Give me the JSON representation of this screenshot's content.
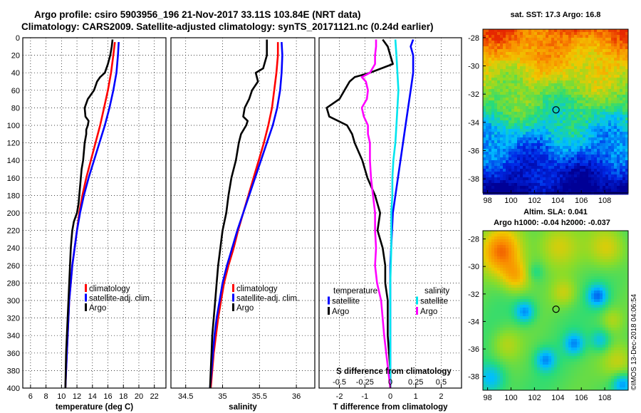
{
  "title": {
    "line1": "Argo profile: csiro 5903956_196 21-Nov-2017 33.11S 103.84E (NRT data)",
    "line2": "Climatology: CARS2009. Satellite-adjusted climatology: synTS_20171121.nc (0.24d earlier)"
  },
  "credit": "©IMOS 13-Dec-2018 04:06:54",
  "colors": {
    "climatology": "#ff0000",
    "satellite": "#0000ff",
    "argo": "#000000",
    "sat_salinity": "#00e5ee",
    "argo_salinity": "#ff00ff"
  },
  "chart_data": [
    {
      "type": "line",
      "panel": "temperature",
      "xlabel": "temperature (deg C)",
      "xlim": [
        5,
        23.5
      ],
      "xticks": [
        6,
        8,
        10,
        12,
        14,
        16,
        18,
        20,
        22
      ],
      "ylim": [
        0,
        400
      ],
      "yticks": [
        0,
        20,
        40,
        60,
        80,
        100,
        120,
        140,
        160,
        180,
        200,
        220,
        240,
        260,
        280,
        300,
        320,
        340,
        360,
        380,
        400
      ],
      "legend": [
        "climatology",
        "satellite-adj. clim.",
        "Argo"
      ],
      "series": [
        {
          "name": "climatology",
          "color": "#ff0000",
          "depth": [
            5,
            20,
            40,
            60,
            80,
            100,
            120,
            140,
            160,
            180,
            200,
            220,
            240,
            260,
            280,
            300,
            320,
            340,
            360,
            380,
            400
          ],
          "values": [
            16.9,
            16.7,
            16.4,
            16.0,
            15.5,
            15.0,
            14.4,
            13.8,
            13.2,
            12.7,
            12.3,
            12.0,
            11.7,
            11.4,
            11.2,
            11.0,
            10.9,
            10.8,
            10.7,
            10.6,
            10.5
          ]
        },
        {
          "name": "satellite-adj. clim.",
          "color": "#0000ff",
          "depth": [
            5,
            20,
            40,
            60,
            80,
            100,
            120,
            140,
            160,
            180,
            200,
            220,
            240,
            260,
            280,
            300,
            320,
            340,
            360,
            380,
            400
          ],
          "values": [
            17.4,
            17.3,
            17.1,
            16.7,
            16.2,
            15.6,
            14.9,
            14.2,
            13.5,
            12.9,
            12.4,
            12.0,
            11.7,
            11.4,
            11.2,
            11.0,
            10.9,
            10.8,
            10.7,
            10.6,
            10.5
          ]
        },
        {
          "name": "Argo",
          "color": "#000000",
          "depth": [
            2,
            10,
            20,
            30,
            40,
            45,
            50,
            60,
            70,
            80,
            90,
            95,
            100,
            105,
            110,
            120,
            130,
            140,
            150,
            160,
            170,
            180,
            190,
            200,
            210,
            220,
            230,
            240,
            260,
            280,
            300,
            320,
            340,
            360,
            380,
            400
          ],
          "values": [
            16.6,
            16.5,
            16.3,
            16.0,
            15.6,
            15.0,
            14.6,
            14.2,
            13.4,
            13.0,
            13.1,
            13.5,
            13.4,
            13.2,
            13.2,
            13.0,
            12.9,
            12.8,
            12.6,
            12.5,
            12.4,
            12.3,
            12.2,
            12.0,
            11.6,
            11.4,
            11.3,
            11.2,
            11.1,
            11.0,
            10.9,
            10.8,
            10.7,
            10.6,
            10.55,
            10.5
          ]
        }
      ]
    },
    {
      "type": "line",
      "panel": "salinity",
      "xlabel": "salinity",
      "xlim": [
        34.3,
        36.25
      ],
      "xticks": [
        34.5,
        35,
        35.5,
        36
      ],
      "xtick_labels": [
        "34.5",
        "35",
        "35.5",
        "36"
      ],
      "ylim": [
        0,
        400
      ],
      "legend": [
        "climatology",
        "satellite-adj. clim.",
        "Argo"
      ],
      "series": [
        {
          "name": "climatology",
          "color": "#ff0000",
          "depth": [
            5,
            20,
            40,
            60,
            80,
            100,
            120,
            140,
            160,
            180,
            200,
            220,
            240,
            260,
            280,
            300,
            320,
            340,
            360,
            380,
            400
          ],
          "values": [
            35.75,
            35.75,
            35.73,
            35.7,
            35.67,
            35.62,
            35.56,
            35.49,
            35.42,
            35.35,
            35.28,
            35.21,
            35.15,
            35.08,
            35.02,
            34.98,
            34.94,
            34.91,
            34.88,
            34.86,
            34.84
          ]
        },
        {
          "name": "satellite-adj. clim.",
          "color": "#0000ff",
          "depth": [
            5,
            20,
            40,
            60,
            80,
            100,
            120,
            140,
            160,
            180,
            200,
            220,
            240,
            260,
            280,
            300,
            320,
            340,
            360,
            380,
            400
          ],
          "values": [
            35.8,
            35.81,
            35.8,
            35.78,
            35.74,
            35.68,
            35.6,
            35.52,
            35.44,
            35.36,
            35.28,
            35.2,
            35.13,
            35.06,
            35.0,
            34.96,
            34.92,
            34.89,
            34.87,
            34.85,
            34.83
          ]
        },
        {
          "name": "Argo",
          "color": "#000000",
          "depth": [
            2,
            20,
            35,
            40,
            50,
            60,
            70,
            80,
            90,
            95,
            100,
            110,
            120,
            140,
            160,
            180,
            200,
            220,
            240,
            260,
            280,
            300,
            320,
            340,
            360,
            380,
            400
          ],
          "values": [
            35.6,
            35.6,
            35.55,
            35.45,
            35.48,
            35.4,
            35.36,
            35.3,
            35.28,
            35.34,
            35.32,
            35.25,
            35.22,
            35.18,
            35.12,
            35.08,
            35.05,
            35.0,
            34.97,
            34.94,
            34.92,
            34.9,
            34.88,
            34.86,
            34.85,
            34.84,
            34.83
          ]
        }
      ]
    },
    {
      "type": "line",
      "panel": "difference",
      "xlabel": "T difference from climatology",
      "top_axis_label": "S difference from climatology",
      "xlim": [
        -2.8,
        2.8
      ],
      "xticks": [
        -2,
        -1,
        0,
        1,
        2
      ],
      "s_scale": 0.25,
      "s_ticks": [
        -0.5,
        -0.25,
        0,
        0.25,
        0.5
      ],
      "s_tick_labels": [
        "-0.5",
        "-0.25",
        "0",
        "0.25",
        "0.5"
      ],
      "ylim": [
        0,
        400
      ],
      "legend_temperature": [
        "temperature",
        "satellite",
        "Argo"
      ],
      "legend_salinity": [
        "salinity",
        "satellite",
        "Argo"
      ],
      "series": [
        {
          "name": "T satellite",
          "color": "#0000ff",
          "depth": [
            2,
            10,
            20,
            40,
            60,
            80,
            100,
            140,
            200,
            260,
            300,
            340,
            400
          ],
          "values": [
            0.9,
            0.8,
            0.9,
            0.9,
            0.8,
            0.7,
            0.6,
            0.4,
            0.1,
            0.0,
            0.0,
            0.0,
            0.0
          ]
        },
        {
          "name": "T Argo",
          "color": "#000000",
          "depth": [
            2,
            10,
            20,
            30,
            40,
            45,
            50,
            60,
            70,
            80,
            90,
            100,
            110,
            120,
            140,
            160,
            180,
            200,
            220,
            240,
            260,
            280,
            300,
            340,
            380,
            400
          ],
          "values": [
            -0.3,
            -0.1,
            0.0,
            0.1,
            -0.8,
            -1.4,
            -1.6,
            -1.8,
            -2.0,
            -2.5,
            -2.4,
            -1.7,
            -1.5,
            -1.4,
            -1.1,
            -0.9,
            -0.6,
            -0.4,
            -0.5,
            -0.3,
            -0.2,
            -0.2,
            -0.1,
            -0.1,
            0.0,
            0.0
          ]
        },
        {
          "name": "S satellite",
          "color": "#00e5ee",
          "depth": [
            2,
            20,
            40,
            60,
            80,
            100,
            120,
            140,
            160,
            180,
            200,
            240,
            280,
            320,
            360,
            400
          ],
          "values": [
            0.05,
            0.06,
            0.07,
            0.08,
            0.07,
            0.06,
            0.05,
            0.03,
            0.02,
            0.02,
            0.01,
            0.01,
            0.0,
            0.0,
            0.0,
            0.0
          ]
        },
        {
          "name": "S Argo",
          "color": "#ff00ff",
          "depth": [
            2,
            10,
            20,
            30,
            40,
            45,
            50,
            60,
            70,
            80,
            90,
            100,
            110,
            120,
            140,
            160,
            180,
            200,
            220,
            240,
            260,
            280,
            300,
            340,
            380,
            400
          ],
          "values": [
            -0.14,
            -0.14,
            -0.15,
            -0.15,
            -0.2,
            -0.28,
            -0.24,
            -0.22,
            -0.23,
            -0.28,
            -0.26,
            -0.22,
            -0.22,
            -0.2,
            -0.2,
            -0.19,
            -0.17,
            -0.15,
            -0.15,
            -0.14,
            -0.15,
            -0.13,
            -0.09,
            -0.06,
            -0.02,
            0.0
          ]
        }
      ]
    }
  ],
  "maps": [
    {
      "name": "sst-map",
      "title": "sat. SST: 17.3 Argo: 16.8",
      "lon_ticks": [
        98,
        100,
        102,
        104,
        106,
        108
      ],
      "lat_ticks": [
        -28,
        -30,
        -32,
        -34,
        -36,
        -38
      ],
      "float_position": {
        "lon": 103.84,
        "lat": -33.11
      }
    },
    {
      "name": "sla-map",
      "title_line1": "Altim. SLA: 0.041",
      "title_line2": "Argo h1000: -0.04 h2000: -0.037",
      "lon_ticks": [
        98,
        100,
        102,
        104,
        106,
        108
      ],
      "lat_ticks": [
        -28,
        -30,
        -32,
        -34,
        -36,
        -38
      ],
      "float_position": {
        "lon": 103.84,
        "lat": -33.11
      }
    }
  ]
}
